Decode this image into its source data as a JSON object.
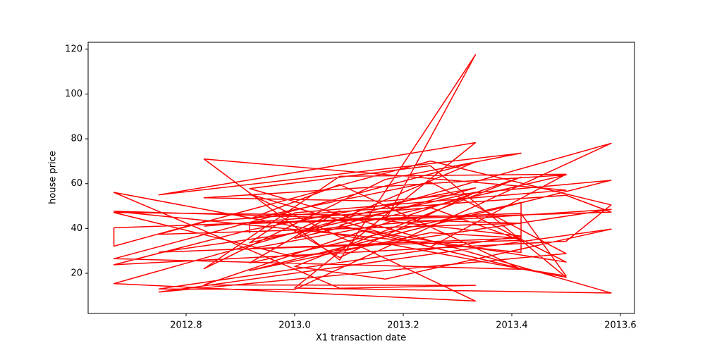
{
  "chart_data": {
    "type": "line",
    "x_label": "X1 transaction date",
    "y_label": "house price",
    "xlim": [
      2012.6195,
      2013.626
    ],
    "ylim": [
      2.07,
      123.1
    ],
    "xticks": [
      2012.8,
      {
        "value": 2013.0,
        "label": "2013.0"
      },
      2013.2,
      2013.4,
      2013.6
    ],
    "yticks": [
      20,
      40,
      60,
      80,
      100,
      120
    ],
    "series": [
      {
        "name": "house price",
        "color": "#ff0000",
        "x": [
          2012.917,
          2012.917,
          2013.583,
          2013.5,
          2012.833,
          2012.667,
          2012.667,
          2013.417,
          2013.5,
          2013.417,
          2013.083,
          2013.333,
          2012.917,
          2012.667,
          2013.5,
          2013.583,
          2013.25,
          2012.75,
          2013.417,
          2012.667,
          2013.417,
          2013.417,
          2012.917,
          2013.083,
          2013.0,
          2013.083,
          2013.333,
          2012.917,
          2013.0,
          2013.5,
          2012.833,
          2013.083,
          2013.333,
          2013.167,
          2013.417,
          2012.75,
          2013.0,
          2013.583,
          2012.667,
          2013.333,
          2012.917,
          2013.25,
          2013.5,
          2013.083,
          2012.833,
          2013.167,
          2013.417,
          2012.75,
          2013.333,
          2013.0,
          2013.583,
          2012.917,
          2013.25,
          2013.5,
          2012.667,
          2013.083,
          2013.333,
          2012.833,
          2013.417,
          2013.0,
          2013.167,
          2013.583,
          2012.75,
          2013.5,
          2013.25,
          2012.917,
          2013.083,
          2013.417,
          2012.667,
          2013.333,
          2013.0,
          2013.5,
          2012.833,
          2013.167,
          2013.583,
          2012.917,
          2013.25,
          2013.417,
          2012.75,
          2013.083,
          2013.5,
          2013.333,
          2012.667,
          2013.0,
          2013.583,
          2013.167,
          2012.917,
          2013.417,
          2013.25,
          2012.833
        ],
        "values": [
          37.9,
          42.2,
          47.3,
          54.8,
          43.1,
          32.1,
          40.3,
          46.7,
          18.8,
          22.1,
          41.4,
          58.1,
          39.3,
          23.8,
          34.3,
          50.5,
          70.1,
          37.4,
          42.3,
          47.7,
          29.3,
          51.6,
          24.6,
          47.9,
          38.8,
          27.0,
          56.2,
          33.6,
          47.0,
          57.1,
          71.0,
          25.9,
          117.5,
          43.5,
          36.6,
          13.0,
          12.8,
          78.0,
          15.4,
          7.6,
          55.3,
          31.7,
          64.2,
          63.3,
          22.0,
          61.9,
          73.6,
          55.0,
          78.3,
          13.4,
          11.2,
          57.8,
          68.0,
          18.2,
          56.1,
          13.3,
          14.6,
          14.8,
          62.9,
          23.0,
          17.4,
          39.7,
          11.6,
          28.8,
          60.7,
          44.3,
          59.6,
          21.8,
          26.5,
          69.7,
          35.6,
          63.9,
          53.7,
          52.2,
          61.5,
          21.2,
          38.1,
          35.7,
          29.4,
          40.8,
          25.0,
          45.4,
          47.1,
          27.3,
          48.5,
          42.0,
          30.9,
          34.7,
          49.3,
          41.0
        ]
      }
    ]
  }
}
